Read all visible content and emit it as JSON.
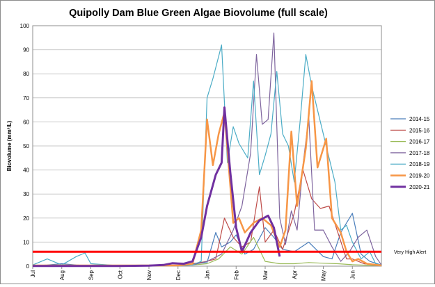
{
  "chart_data": {
    "type": "line",
    "title": "Quipolly Dam Blue Green Algae Biovolume (full scale)",
    "ylabel": "Biovolume (mm³/L)",
    "xlabel": "",
    "ylim": [
      0,
      100
    ],
    "y_ticks": [
      0,
      10,
      20,
      30,
      40,
      50,
      60,
      70,
      80,
      90,
      100
    ],
    "x_domain": [
      0,
      12
    ],
    "x_ticks": [
      {
        "label": "Jul",
        "x": 0
      },
      {
        "label": "Aug",
        "x": 1
      },
      {
        "label": "Sep",
        "x": 2
      },
      {
        "label": "Oct",
        "x": 3
      },
      {
        "label": "Nov",
        "x": 4
      },
      {
        "label": "Dec",
        "x": 5
      },
      {
        "label": "Jan",
        "x": 6
      },
      {
        "label": "Feb",
        "x": 7
      },
      {
        "label": "Mar",
        "x": 8
      },
      {
        "label": "Apr",
        "x": 9
      },
      {
        "label": "May",
        "x": 10
      },
      {
        "label": "Jun",
        "x": 11
      }
    ],
    "grid": true,
    "legend_position": "right",
    "threshold": {
      "value": 6,
      "label": "Very High Alert",
      "color": "#ff0000"
    },
    "series": [
      {
        "name": "2014-15",
        "color": "#4a7ebb",
        "width": 1.2,
        "points": [
          [
            0,
            0.2
          ],
          [
            0.5,
            0.5
          ],
          [
            1,
            1
          ],
          [
            1.5,
            0.5
          ],
          [
            2,
            0.2
          ],
          [
            3,
            0.2
          ],
          [
            4,
            0.3
          ],
          [
            5,
            0.3
          ],
          [
            5.5,
            1
          ],
          [
            6,
            1.5
          ],
          [
            6.3,
            14
          ],
          [
            6.5,
            8
          ],
          [
            6.8,
            10
          ],
          [
            7,
            13
          ],
          [
            7.3,
            5
          ],
          [
            7.6,
            7
          ],
          [
            8,
            16
          ],
          [
            8.3,
            12
          ],
          [
            8.6,
            7
          ],
          [
            9,
            6
          ],
          [
            9.5,
            10
          ],
          [
            10,
            4
          ],
          [
            10.3,
            3
          ],
          [
            10.6,
            14
          ],
          [
            11,
            22
          ],
          [
            11.3,
            5
          ],
          [
            11.6,
            2
          ],
          [
            12,
            0.5
          ]
        ]
      },
      {
        "name": "2015-16",
        "color": "#be4b48",
        "width": 1.2,
        "points": [
          [
            0,
            0.2
          ],
          [
            0.5,
            0.3
          ],
          [
            1,
            0.5
          ],
          [
            1.5,
            0.3
          ],
          [
            2,
            0.2
          ],
          [
            3,
            0.2
          ],
          [
            4,
            0.2
          ],
          [
            5,
            0.3
          ],
          [
            5.5,
            1
          ],
          [
            6,
            2
          ],
          [
            6.3,
            3
          ],
          [
            6.6,
            20
          ],
          [
            6.9,
            12
          ],
          [
            7.2,
            8
          ],
          [
            7.5,
            10
          ],
          [
            7.8,
            33
          ],
          [
            8,
            10
          ],
          [
            8.3,
            15
          ],
          [
            8.6,
            7
          ],
          [
            9,
            22
          ],
          [
            9.3,
            40
          ],
          [
            9.6,
            28
          ],
          [
            9.9,
            24
          ],
          [
            10.2,
            25
          ],
          [
            10.5,
            14
          ],
          [
            10.8,
            3
          ],
          [
            11,
            3
          ],
          [
            11.4,
            1
          ],
          [
            11.8,
            0.5
          ],
          [
            12,
            0.3
          ]
        ]
      },
      {
        "name": "2016-17",
        "color": "#9bbb59",
        "width": 1.2,
        "points": [
          [
            0,
            0.1
          ],
          [
            1,
            0.1
          ],
          [
            2,
            0.1
          ],
          [
            3,
            0.1
          ],
          [
            4,
            0.1
          ],
          [
            5,
            0.2
          ],
          [
            5.5,
            0.5
          ],
          [
            6,
            1
          ],
          [
            6.4,
            3
          ],
          [
            6.8,
            8
          ],
          [
            7.2,
            5
          ],
          [
            7.6,
            12
          ],
          [
            8,
            2
          ],
          [
            8.5,
            1
          ],
          [
            9,
            1
          ],
          [
            9.5,
            1.5
          ],
          [
            10,
            1.2
          ],
          [
            10.5,
            1
          ],
          [
            11,
            0.6
          ],
          [
            11.5,
            0.4
          ],
          [
            12,
            0.2
          ]
        ]
      },
      {
        "name": "2017-18",
        "color": "#7e649e",
        "width": 1.2,
        "points": [
          [
            0,
            0.2
          ],
          [
            1,
            0.2
          ],
          [
            2,
            0.2
          ],
          [
            3,
            0.2
          ],
          [
            4,
            0.2
          ],
          [
            5,
            0.2
          ],
          [
            5.5,
            0.5
          ],
          [
            6,
            2
          ],
          [
            6.5,
            5
          ],
          [
            6.9,
            15
          ],
          [
            7.2,
            25
          ],
          [
            7.5,
            47
          ],
          [
            7.7,
            88
          ],
          [
            7.9,
            59
          ],
          [
            8.1,
            61
          ],
          [
            8.3,
            97
          ],
          [
            8.5,
            20
          ],
          [
            8.7,
            9
          ],
          [
            8.9,
            23
          ],
          [
            9.1,
            15
          ],
          [
            9.3,
            42
          ],
          [
            9.5,
            62
          ],
          [
            9.7,
            15
          ],
          [
            10,
            15
          ],
          [
            10.3,
            8
          ],
          [
            10.6,
            2
          ],
          [
            10.9,
            6
          ],
          [
            11.2,
            12
          ],
          [
            11.5,
            15
          ],
          [
            11.8,
            4
          ],
          [
            12,
            0.5
          ]
        ]
      },
      {
        "name": "2018-19",
        "color": "#4bacc6",
        "width": 1.2,
        "points": [
          [
            0,
            0.5
          ],
          [
            0.5,
            3
          ],
          [
            1,
            0.5
          ],
          [
            1.5,
            4
          ],
          [
            1.8,
            5.5
          ],
          [
            2,
            1
          ],
          [
            3,
            0.2
          ],
          [
            4,
            0.2
          ],
          [
            5,
            0.2
          ],
          [
            5.5,
            0.5
          ],
          [
            5.8,
            2
          ],
          [
            6,
            70
          ],
          [
            6.2,
            78
          ],
          [
            6.5,
            92
          ],
          [
            6.7,
            43
          ],
          [
            6.9,
            58
          ],
          [
            7.1,
            51
          ],
          [
            7.4,
            45
          ],
          [
            7.6,
            77
          ],
          [
            7.8,
            38
          ],
          [
            8,
            46
          ],
          [
            8.2,
            55
          ],
          [
            8.4,
            81
          ],
          [
            8.6,
            55
          ],
          [
            8.8,
            50
          ],
          [
            9,
            35
          ],
          [
            9.2,
            60
          ],
          [
            9.4,
            88
          ],
          [
            9.6,
            75
          ],
          [
            10,
            55
          ],
          [
            10.4,
            35
          ],
          [
            10.6,
            15
          ],
          [
            10.8,
            17
          ],
          [
            11,
            10
          ],
          [
            11.3,
            3
          ],
          [
            11.6,
            6
          ],
          [
            11.8,
            1
          ],
          [
            12,
            0.5
          ]
        ]
      },
      {
        "name": "2019-20",
        "color": "#f79646",
        "width": 2.5,
        "points": [
          [
            0,
            0.3
          ],
          [
            1,
            0.3
          ],
          [
            2,
            0.3
          ],
          [
            3,
            0.3
          ],
          [
            4,
            0.3
          ],
          [
            5,
            0.3
          ],
          [
            5.5,
            1
          ],
          [
            5.8,
            15
          ],
          [
            6,
            61
          ],
          [
            6.2,
            42
          ],
          [
            6.4,
            55
          ],
          [
            6.6,
            64
          ],
          [
            6.9,
            18
          ],
          [
            7.1,
            20
          ],
          [
            7.3,
            14
          ],
          [
            7.6,
            18
          ],
          [
            7.9,
            20
          ],
          [
            8.2,
            17
          ],
          [
            8.5,
            8
          ],
          [
            8.7,
            15
          ],
          [
            8.9,
            56
          ],
          [
            9.1,
            25
          ],
          [
            9.4,
            49
          ],
          [
            9.6,
            77
          ],
          [
            9.8,
            41
          ],
          [
            10.1,
            53
          ],
          [
            10.3,
            20
          ],
          [
            10.6,
            14
          ],
          [
            10.8,
            6
          ],
          [
            11,
            2
          ],
          [
            11.2,
            3
          ],
          [
            11.5,
            1
          ],
          [
            12,
            0.3
          ]
        ]
      },
      {
        "name": "2020-21",
        "color": "#7030a0",
        "width": 3,
        "points": [
          [
            0,
            0.1
          ],
          [
            1,
            0.1
          ],
          [
            2,
            0.1
          ],
          [
            3,
            0.1
          ],
          [
            4,
            0.2
          ],
          [
            4.5,
            0.5
          ],
          [
            4.8,
            1.2
          ],
          [
            5.2,
            1
          ],
          [
            5.5,
            2
          ],
          [
            5.8,
            12
          ],
          [
            6,
            25
          ],
          [
            6.3,
            38
          ],
          [
            6.5,
            43
          ],
          [
            6.6,
            66
          ],
          [
            6.8,
            39
          ],
          [
            7,
            16
          ],
          [
            7.2,
            6
          ],
          [
            7.5,
            14
          ],
          [
            7.8,
            19
          ],
          [
            8.1,
            21
          ],
          [
            8.3,
            16
          ],
          [
            8.5,
            4
          ]
        ]
      }
    ]
  }
}
